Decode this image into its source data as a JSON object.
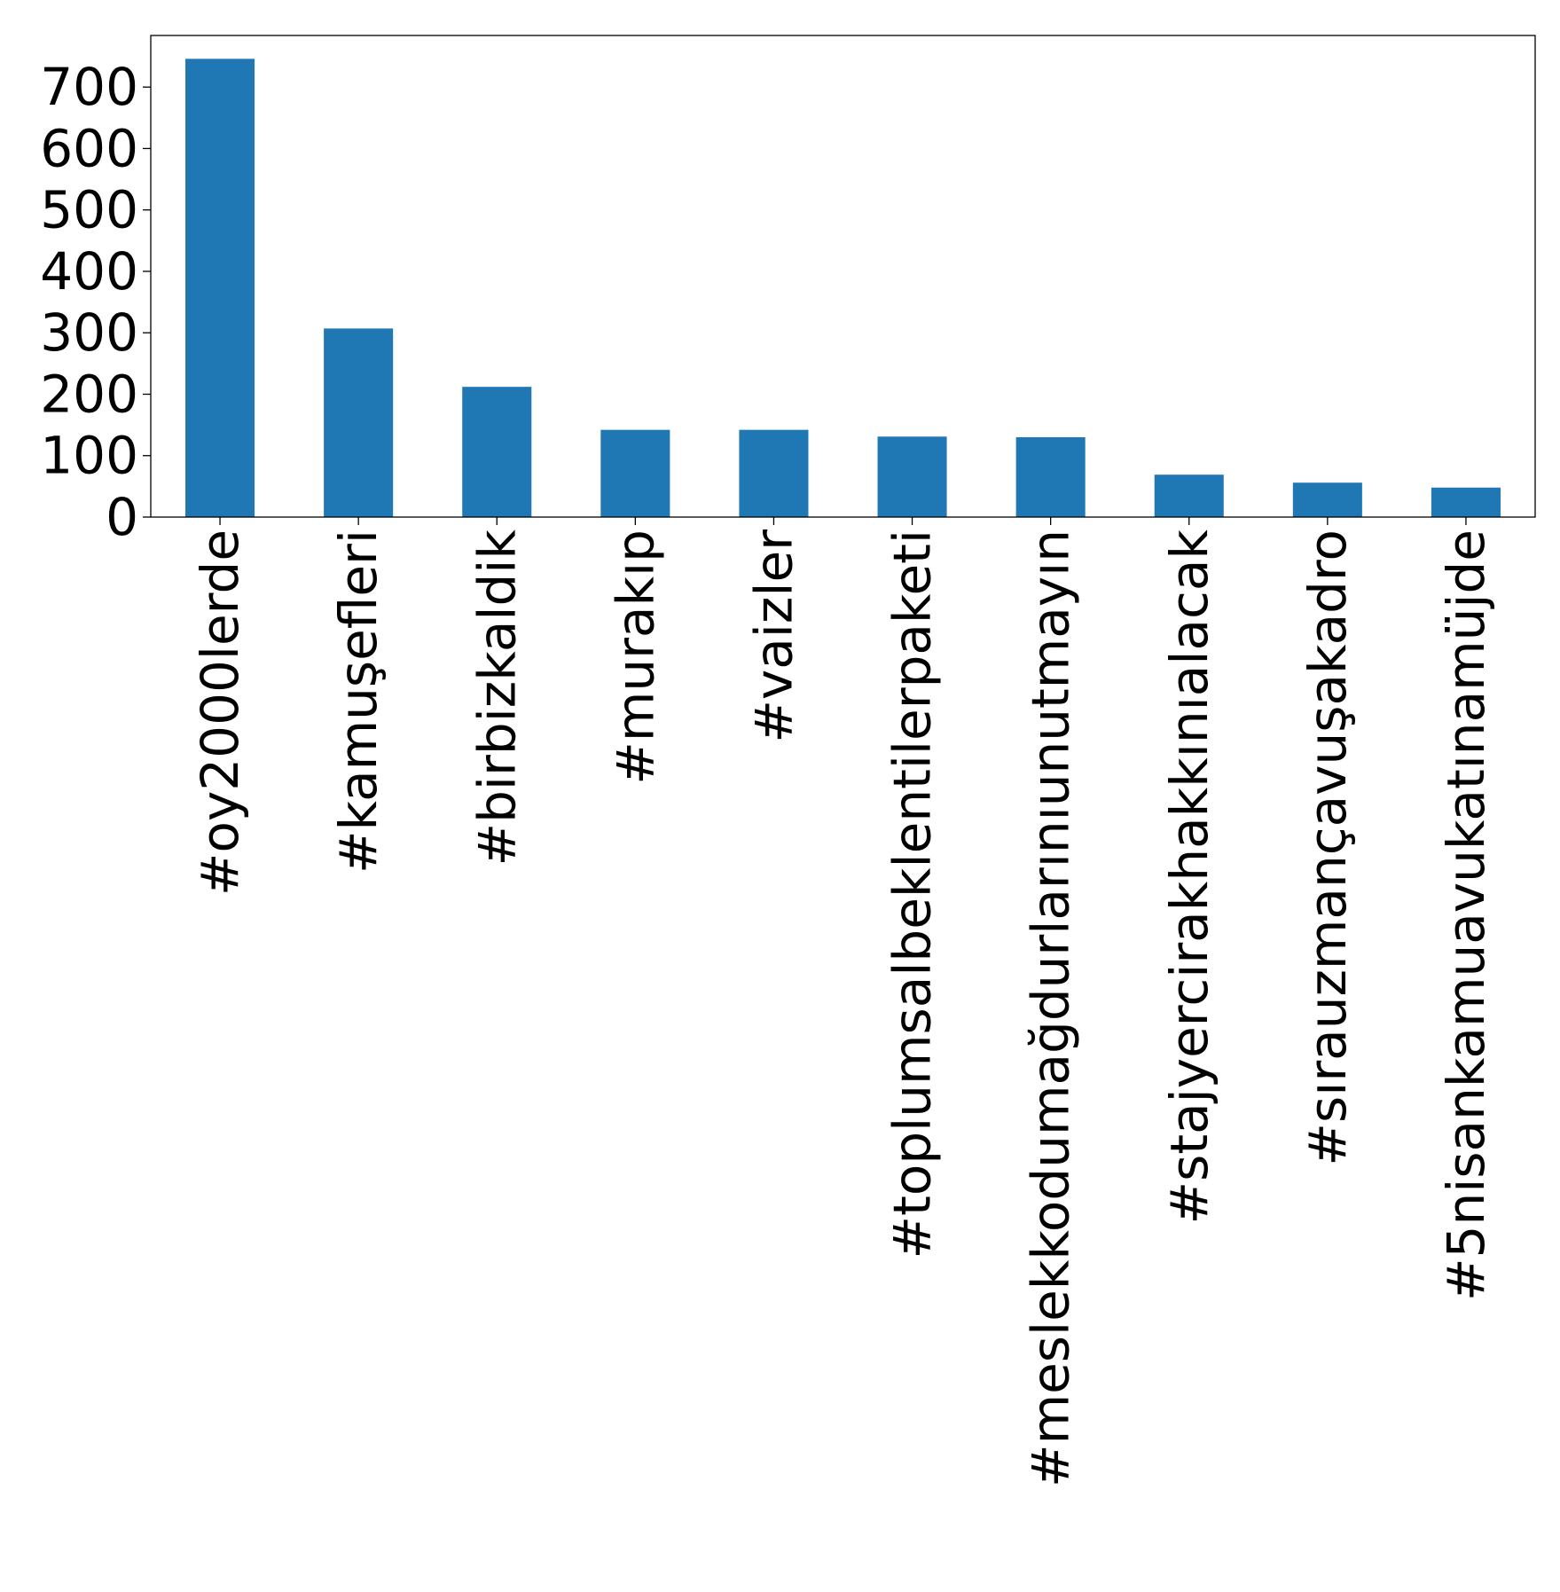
{
  "chart_data": {
    "type": "bar",
    "title": "",
    "xlabel": "",
    "ylabel": "",
    "categories": [
      "#oy2000lerde",
      "#kamuşefleri",
      "#birbizkaldik",
      "#murakıp",
      "#vaizler",
      "#toplumsalbeklentilerpaketi",
      "#meslekkodumağdurlarınıunutmayın",
      "#stajyercirakhakkınıalacak",
      "#sırauzmançavuşakadro",
      "#5nisankamuavukatınamüjde"
    ],
    "values": [
      746,
      307,
      212,
      142,
      142,
      131,
      130,
      69,
      56,
      48
    ],
    "ylim": [
      0,
      784
    ],
    "yticks": [
      0,
      100,
      200,
      300,
      400,
      500,
      600,
      700
    ],
    "grid": false,
    "colors": {
      "bar": "#1f77b4",
      "axis": "#000000"
    }
  }
}
